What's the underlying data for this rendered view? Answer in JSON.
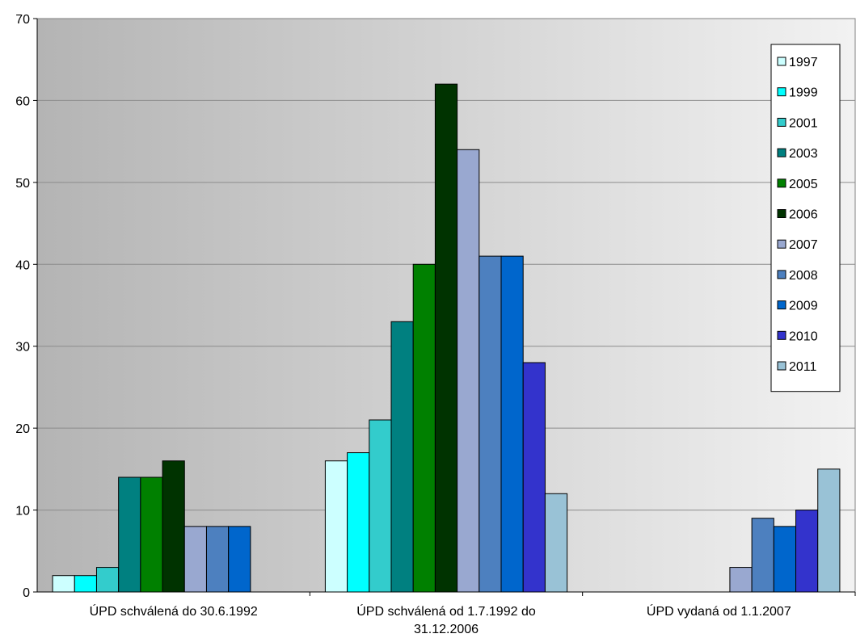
{
  "chart_data": {
    "type": "bar",
    "title": "",
    "xlabel": "",
    "ylabel": "",
    "ylim": [
      0,
      70
    ],
    "ytick_step": 10,
    "grid": true,
    "legend_position": "top-right",
    "categories": [
      "ÚPD schválená do 30.6.1992",
      "ÚPD schválená od 1.7.1992 do 31.12.2006",
      "ÚPD vydaná od 1.1.2007"
    ],
    "category_lines": [
      [
        "ÚPD schválená do 30.6.1992"
      ],
      [
        "ÚPD schválená od 1.7.1992 do",
        "31.12.2006"
      ],
      [
        "ÚPD vydaná od 1.1.2007"
      ]
    ],
    "series": [
      {
        "name": "1997",
        "color": "#CCFFFF",
        "values": [
          2,
          16,
          0
        ]
      },
      {
        "name": "1999",
        "color": "#00FFFF",
        "values": [
          2,
          17,
          0
        ]
      },
      {
        "name": "2001",
        "color": "#33CCCC",
        "values": [
          3,
          21,
          0
        ]
      },
      {
        "name": "2003",
        "color": "#008080",
        "values": [
          14,
          33,
          0
        ]
      },
      {
        "name": "2005",
        "color": "#008000",
        "values": [
          14,
          40,
          0
        ]
      },
      {
        "name": "2006",
        "color": "#003300",
        "values": [
          16,
          62,
          0
        ]
      },
      {
        "name": "2007",
        "color": "#99A8D0",
        "values": [
          8,
          54,
          3
        ]
      },
      {
        "name": "2008",
        "color": "#4D80BF",
        "values": [
          8,
          41,
          9
        ]
      },
      {
        "name": "2009",
        "color": "#0066CC",
        "values": [
          8,
          41,
          8
        ]
      },
      {
        "name": "2010",
        "color": "#3333CC",
        "values": [
          0,
          28,
          10
        ]
      },
      {
        "name": "2011",
        "color": "#99C2D6",
        "values": [
          0,
          12,
          15
        ]
      }
    ]
  }
}
